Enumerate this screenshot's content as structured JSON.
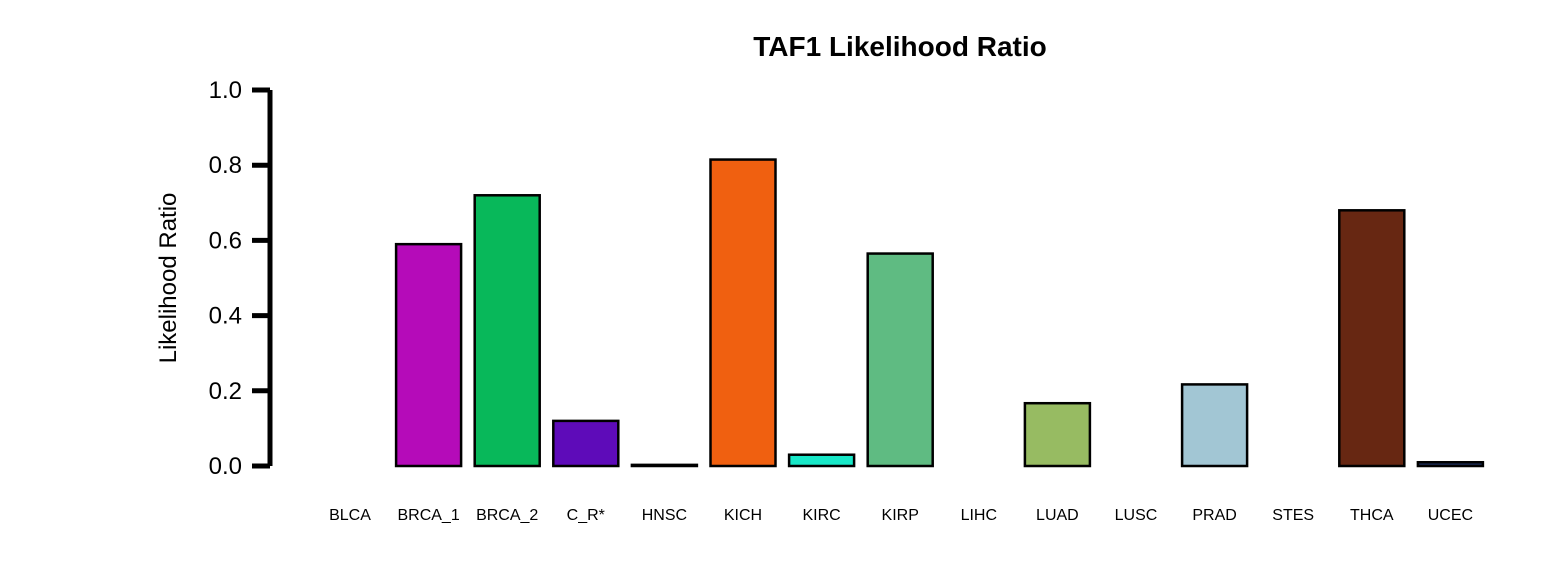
{
  "chart_data": {
    "type": "bar",
    "title": "TAF1 Likelihood Ratio",
    "xlabel": "",
    "ylabel": "Likelihood Ratio",
    "ylim": [
      0,
      1.0
    ],
    "yticks": [
      "0.0",
      "0.2",
      "0.4",
      "0.6",
      "0.8",
      "1.0"
    ],
    "grid": false,
    "categories": [
      "BLCA",
      "BRCA_1",
      "BRCA_2",
      "C_R*",
      "HNSC",
      "KICH",
      "KIRC",
      "KIRP",
      "LIHC",
      "LUAD",
      "LUSC",
      "PRAD",
      "STES",
      "THCA",
      "UCEC"
    ],
    "values": [
      0.0,
      0.59,
      0.72,
      0.12,
      0.003,
      0.815,
      0.03,
      0.565,
      0.0,
      0.167,
      0.0,
      0.217,
      0.0,
      0.68,
      0.01
    ],
    "colors": [
      "#000000",
      "#B50BB9",
      "#08B85A",
      "#5E0BB9",
      "#000000",
      "#F06010",
      "#18E8C8",
      "#5FBB82",
      "#000000",
      "#97BB62",
      "#000000",
      "#A2C6D4",
      "#000000",
      "#672712",
      "#1E2E5A"
    ]
  }
}
